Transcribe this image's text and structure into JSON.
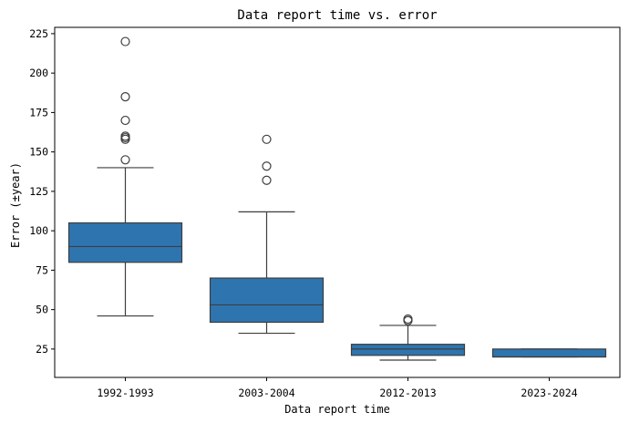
{
  "chart_data": {
    "type": "box",
    "title": "Data report time vs. error",
    "xlabel": "Data report time",
    "ylabel": "Error (±year)",
    "categories": [
      "1992-1993",
      "2003-2004",
      "2012-2013",
      "2023-2024"
    ],
    "yticks": [
      25,
      50,
      75,
      100,
      125,
      150,
      175,
      200,
      225
    ],
    "ylim": [
      7,
      229
    ],
    "grid": false,
    "box_color": "#2e75b0",
    "boxes": [
      {
        "category": "1992-1993",
        "whisker_low": 46,
        "q1": 80,
        "median": 90,
        "q3": 105,
        "whisker_high": 140,
        "outliers": [
          145,
          158,
          159,
          160,
          170,
          185,
          220
        ]
      },
      {
        "category": "2003-2004",
        "whisker_low": 35,
        "q1": 42,
        "median": 53,
        "q3": 70,
        "whisker_high": 112,
        "outliers": [
          132,
          141,
          158
        ]
      },
      {
        "category": "2012-2013",
        "whisker_low": 18,
        "q1": 21,
        "median": 25,
        "q3": 28,
        "whisker_high": 40,
        "outliers": [
          43,
          44
        ]
      },
      {
        "category": "2023-2024",
        "whisker_low": 20,
        "q1": 20,
        "median": 20,
        "q3": 25,
        "whisker_high": 25,
        "outliers": []
      }
    ]
  }
}
